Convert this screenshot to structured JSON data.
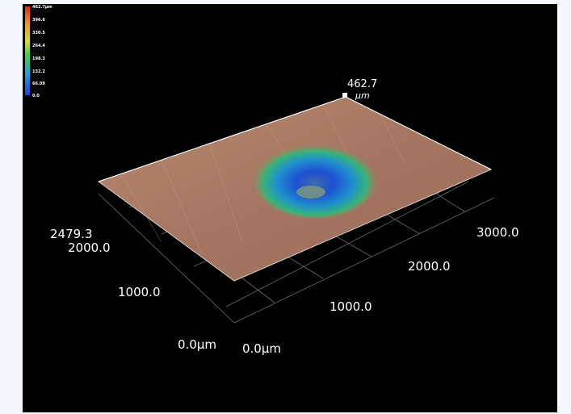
{
  "color_scale": {
    "labels": [
      "462.7µm",
      "396.6",
      "330.5",
      "264.4",
      "198.3",
      "132.2",
      "66.09",
      "0.0"
    ]
  },
  "peak": {
    "value": "462.7",
    "unit": "µm"
  },
  "axes": {
    "left": [
      "2479.3",
      "2000.0",
      "1000.0",
      "0.0µm"
    ],
    "right": [
      "0.0µm",
      "1000.0",
      "2000.0",
      "3000.0"
    ]
  }
}
